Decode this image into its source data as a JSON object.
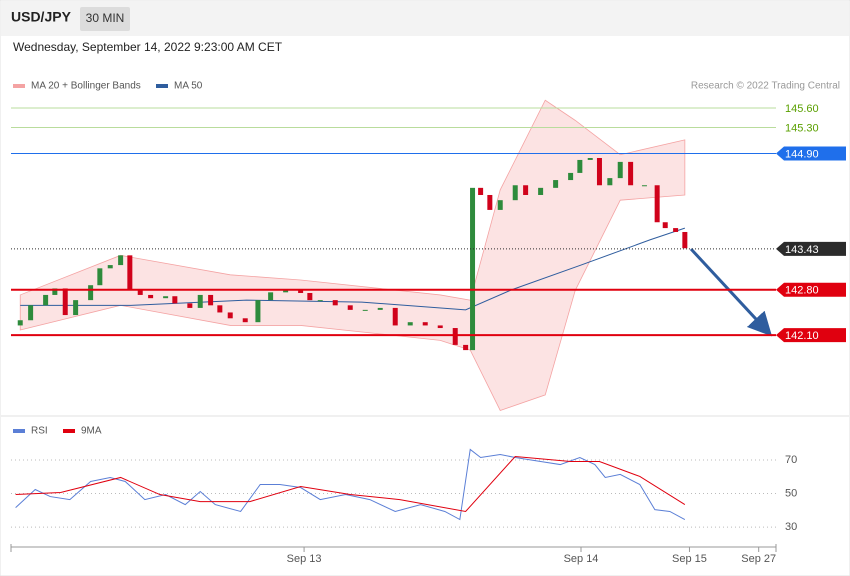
{
  "header": {
    "symbol": "USD/JPY",
    "interval": "30 MIN",
    "date": "Wednesday, September 14, 2022 9:23:00 AM CET",
    "credit": "Research © 2022 Trading Central"
  },
  "chart_data": [
    {
      "type": "candlestick",
      "x": [
        -24.6,
        -23.7,
        -22.4,
        -21.6,
        -20.7,
        -19.8,
        -18.5,
        -17.7,
        -16.8,
        -15.9,
        -15.1,
        -14.2,
        -13.3,
        -12.0,
        -11.2,
        -9.9,
        -9.0,
        -8.1,
        -7.3,
        -6.4,
        -5.1,
        -4.0,
        -2.9,
        -1.6,
        -0.3,
        0.5,
        1.4,
        2.7,
        4.0,
        5.3,
        6.6,
        7.9,
        9.2,
        10.5,
        11.8,
        13.1,
        14.0,
        14.6,
        15.3,
        16.1,
        17.0,
        18.3,
        19.2,
        20.5,
        21.8,
        23.1,
        23.9,
        24.8,
        25.6,
        26.5,
        27.4,
        28.3,
        29.5,
        30.6,
        31.3,
        32.2,
        33.0
      ],
      "open": [
        142.25,
        142.33,
        142.56,
        142.72,
        142.82,
        142.41,
        142.64,
        142.87,
        143.13,
        143.18,
        143.33,
        142.79,
        142.72,
        142.67,
        142.7,
        142.59,
        142.52,
        142.72,
        142.56,
        142.45,
        142.36,
        142.3,
        142.64,
        142.76,
        142.79,
        142.75,
        142.64,
        142.64,
        142.56,
        142.49,
        142.49,
        142.52,
        142.25,
        142.3,
        142.25,
        142.21,
        141.95,
        141.87,
        144.37,
        144.26,
        144.03,
        144.18,
        144.41,
        144.26,
        144.37,
        144.49,
        144.6,
        144.8,
        144.83,
        144.41,
        144.52,
        144.77,
        144.41,
        144.41,
        143.84,
        143.75,
        143.69
      ],
      "close": [
        142.33,
        142.56,
        142.72,
        142.82,
        142.41,
        142.64,
        142.87,
        143.13,
        143.18,
        143.33,
        142.79,
        142.72,
        142.67,
        142.7,
        142.59,
        142.52,
        142.72,
        142.56,
        142.45,
        142.36,
        142.3,
        142.64,
        142.76,
        142.79,
        142.75,
        142.64,
        142.64,
        142.56,
        142.49,
        142.49,
        142.52,
        142.25,
        142.3,
        142.25,
        142.21,
        141.95,
        141.87,
        144.37,
        144.26,
        144.03,
        144.18,
        144.41,
        144.26,
        144.37,
        144.49,
        144.6,
        144.8,
        144.83,
        144.41,
        144.52,
        144.77,
        144.41,
        144.41,
        143.84,
        143.75,
        143.69,
        143.44
      ],
      "up_color": "#2e8b3c",
      "down_color": "#d0021b",
      "band": {
        "name": "MA 20 + Bollinger Bands",
        "color": "#f4a3a3",
        "x": [
          -24.6,
          -15.9,
          -6.4,
          -0.3,
          11.8,
          14.4,
          17.0,
          20.9,
          23.5,
          27.4,
          33.0
        ],
        "upper": [
          142.72,
          143.33,
          143.03,
          142.95,
          142.72,
          142.64,
          144.34,
          145.72,
          145.41,
          144.88,
          145.11
        ],
        "lower": [
          142.18,
          142.56,
          142.25,
          142.25,
          142.02,
          141.87,
          140.94,
          141.18,
          142.79,
          144.18,
          144.26
        ]
      },
      "ma50": {
        "name": "MA 50",
        "color": "#2f5d9e",
        "x": [
          -24.6,
          -15.0,
          -5.0,
          5.0,
          14.0,
          18.0,
          24.0,
          30.0,
          33.0
        ],
        "values": [
          142.56,
          142.56,
          142.64,
          142.61,
          142.49,
          142.8,
          143.18,
          143.57,
          143.75
        ]
      },
      "levels": [
        {
          "value": 145.6,
          "label": "145.60",
          "color": "#b9dc9c",
          "text_color": "#5aa000",
          "box": false
        },
        {
          "value": 145.3,
          "label": "145.30",
          "color": "#b9dc9c",
          "text_color": "#5aa000",
          "box": false
        },
        {
          "value": 144.9,
          "label": "144.90",
          "color": "#1f6feb",
          "text_color": "#ffffff",
          "box": true
        },
        {
          "value": 143.43,
          "label": "143.43",
          "color": "#2b2b2b",
          "text_color": "#ffffff",
          "box": true
        },
        {
          "value": 142.8,
          "label": "142.80",
          "color": "#e0000f",
          "text_color": "#ffffff",
          "box": true
        },
        {
          "value": 142.1,
          "label": "142.10",
          "color": "#e0000f",
          "text_color": "#ffffff",
          "box": true
        }
      ],
      "xlim": [
        -25.4,
        40.9
      ],
      "ylim": [
        140.87,
        146.34
      ]
    },
    {
      "type": "line",
      "series": [
        {
          "name": "RSI",
          "color": "#5b7fd6",
          "x": [
            -25.0,
            -23.3,
            -22.0,
            -20.3,
            -18.5,
            -16.8,
            -15.5,
            -13.8,
            -12.0,
            -10.3,
            -9.0,
            -7.7,
            -5.5,
            -3.8,
            -2.1,
            -0.3,
            1.4,
            3.6,
            5.7,
            7.9,
            10.1,
            12.2,
            13.5,
            14.4,
            15.3,
            17.0,
            18.3,
            20.5,
            22.2,
            23.9,
            25.2,
            26.1,
            27.4,
            29.1,
            30.4,
            31.7,
            33.0
          ],
          "values": [
            41.6,
            52.4,
            48.2,
            46.4,
            57.2,
            59.6,
            57.2,
            46.4,
            49.4,
            43.4,
            51.2,
            43.4,
            39.3,
            55.4,
            55.4,
            53.6,
            46.4,
            49.4,
            46.4,
            39.3,
            43.4,
            39.3,
            34.5,
            76.3,
            71.5,
            73.3,
            71.5,
            69.1,
            67.3,
            71.5,
            67.3,
            59.6,
            61.4,
            55.4,
            40.4,
            39.3,
            34.5
          ]
        },
        {
          "name": "9MA",
          "color": "#e0000f",
          "x": [
            -25.0,
            -21.1,
            -15.9,
            -12.5,
            -9.0,
            -4.7,
            -0.3,
            4.0,
            8.3,
            14.0,
            18.3,
            23.1,
            25.6,
            29.1,
            33.0
          ],
          "values": [
            49.4,
            50.6,
            59.6,
            49.4,
            45.2,
            45.2,
            54.2,
            49.4,
            46.4,
            39.3,
            72.1,
            69.1,
            69.1,
            60.2,
            43.4
          ]
        }
      ],
      "xlim": [
        -25.4,
        40.9
      ],
      "ylim": [
        19.3,
        90.9
      ],
      "yticks": [
        30,
        50,
        70
      ],
      "grid": true,
      "xticks": [
        {
          "value": 0,
          "label": "Sep 13"
        },
        {
          "value": 24,
          "label": "Sep 14"
        },
        {
          "value": 33.4,
          "label": "Sep 15"
        },
        {
          "value": 39.4,
          "label": "Sep 27"
        }
      ]
    }
  ]
}
